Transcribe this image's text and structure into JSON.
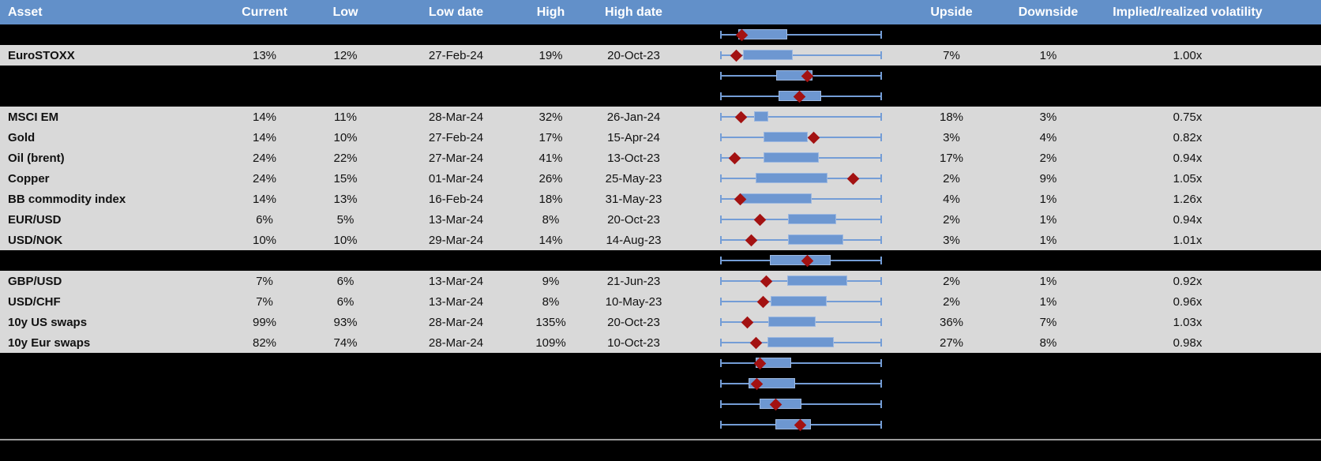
{
  "colors": {
    "header_bg": "#6290c9",
    "header_text": "#ffffff",
    "data_row_bg": "#d9d9d9",
    "spacer_row_bg": "#000000",
    "box_fill": "#6d97d1",
    "box_border": "#9db8e0",
    "whisker": "#749dd6",
    "marker": "#a31212",
    "bottom_rule": "#9b9b9b"
  },
  "header": {
    "asset": "Asset",
    "current": "Current",
    "low": "Low",
    "low_date": "Low date",
    "high": "High",
    "high_date": "High date",
    "upside": "Upside",
    "downside": "Downside",
    "iv_rv": "Implied/realized volatility"
  },
  "chart_data": {
    "type": "table",
    "note": "Each row has an embedded range (box-whisker) plot: whisker spans full low-high range; box and diamond marker positions are percentages of plot width.",
    "rows": [
      {
        "type": "spacer",
        "asset": "",
        "current": "",
        "low": "",
        "low_date": "",
        "high": "",
        "high_date": "",
        "upside": "",
        "downside": "",
        "iv_rv": "",
        "plot": {
          "box_start": 11.2,
          "box_end": 41.5,
          "marker": 13.2
        }
      },
      {
        "type": "data",
        "asset": "EuroSTOXX",
        "current": "13%",
        "low": "12%",
        "low_date": "27-Feb-24",
        "high": "19%",
        "high_date": "20-Oct-23",
        "upside": "7%",
        "downside": "1%",
        "iv_rv": "1.00x",
        "plot": {
          "box_start": 14.1,
          "box_end": 44.9,
          "marker": 9.8
        }
      },
      {
        "type": "spacer",
        "asset": "",
        "current": "",
        "low": "",
        "low_date": "",
        "high": "",
        "high_date": "",
        "upside": "",
        "downside": "",
        "iv_rv": "",
        "plot": {
          "box_start": 34.6,
          "box_end": 57.1,
          "marker": 53.7
        }
      },
      {
        "type": "spacer",
        "asset": "",
        "current": "",
        "low": "",
        "low_date": "",
        "high": "",
        "high_date": "",
        "upside": "",
        "downside": "",
        "iv_rv": "",
        "plot": {
          "box_start": 36.1,
          "box_end": 62.4,
          "marker": 48.8
        }
      },
      {
        "type": "data",
        "asset": "MSCI EM",
        "current": "14%",
        "low": "11%",
        "low_date": "28-Mar-24",
        "high": "32%",
        "high_date": "26-Jan-24",
        "upside": "18%",
        "downside": "3%",
        "iv_rv": "0.75x",
        "plot": {
          "box_start": 21.0,
          "box_end": 29.8,
          "marker": 12.7
        }
      },
      {
        "type": "data",
        "asset": "Gold",
        "current": "14%",
        "low": "10%",
        "low_date": "27-Feb-24",
        "high": "17%",
        "high_date": "15-Apr-24",
        "upside": "3%",
        "downside": "4%",
        "iv_rv": "0.82x",
        "plot": {
          "box_start": 26.8,
          "box_end": 54.1,
          "marker": 57.6
        }
      },
      {
        "type": "data",
        "asset": "Oil (brent)",
        "current": "24%",
        "low": "22%",
        "low_date": "27-Mar-24",
        "high": "41%",
        "high_date": "13-Oct-23",
        "upside": "17%",
        "downside": "2%",
        "iv_rv": "0.94x",
        "plot": {
          "box_start": 26.8,
          "box_end": 61.0,
          "marker": 8.8
        }
      },
      {
        "type": "data",
        "asset": "Copper",
        "current": "24%",
        "low": "15%",
        "low_date": "01-Mar-24",
        "high": "26%",
        "high_date": "25-May-23",
        "upside": "2%",
        "downside": "9%",
        "iv_rv": "1.05x",
        "plot": {
          "box_start": 22.0,
          "box_end": 66.3,
          "marker": 82.0
        }
      },
      {
        "type": "data",
        "asset": "BB commodity index",
        "current": "14%",
        "low": "13%",
        "low_date": "16-Feb-24",
        "high": "18%",
        "high_date": "31-May-23",
        "upside": "4%",
        "downside": "1%",
        "iv_rv": "1.26x",
        "plot": {
          "box_start": 12.7,
          "box_end": 56.6,
          "marker": 12.2
        }
      },
      {
        "type": "data",
        "asset": "EUR/USD",
        "current": "6%",
        "low": "5%",
        "low_date": "13-Mar-24",
        "high": "8%",
        "high_date": "20-Oct-23",
        "upside": "2%",
        "downside": "1%",
        "iv_rv": "0.94x",
        "plot": {
          "box_start": 42.0,
          "box_end": 71.7,
          "marker": 24.4
        }
      },
      {
        "type": "data",
        "asset": "USD/NOK",
        "current": "10%",
        "low": "10%",
        "low_date": "29-Mar-24",
        "high": "14%",
        "high_date": "14-Aug-23",
        "upside": "3%",
        "downside": "1%",
        "iv_rv": "1.01x",
        "plot": {
          "box_start": 42.0,
          "box_end": 76.1,
          "marker": 19.5
        }
      },
      {
        "type": "spacer",
        "asset": "",
        "current": "",
        "low": "",
        "low_date": "",
        "high": "",
        "high_date": "",
        "upside": "",
        "downside": "",
        "iv_rv": "",
        "plot": {
          "box_start": 30.7,
          "box_end": 68.3,
          "marker": 53.7
        }
      },
      {
        "type": "data",
        "asset": "GBP/USD",
        "current": "7%",
        "low": "6%",
        "low_date": "13-Mar-24",
        "high": "9%",
        "high_date": "21-Jun-23",
        "upside": "2%",
        "downside": "1%",
        "iv_rv": "0.92x",
        "plot": {
          "box_start": 41.5,
          "box_end": 78.5,
          "marker": 28.3
        }
      },
      {
        "type": "data",
        "asset": "USD/CHF",
        "current": "7%",
        "low": "6%",
        "low_date": "13-Mar-24",
        "high": "8%",
        "high_date": "10-May-23",
        "upside": "2%",
        "downside": "1%",
        "iv_rv": "0.96x",
        "plot": {
          "box_start": 31.2,
          "box_end": 65.9,
          "marker": 26.8
        }
      },
      {
        "type": "data",
        "asset": "10y US swaps",
        "current": "99%",
        "low": "93%",
        "low_date": "28-Mar-24",
        "high": "135%",
        "high_date": "20-Oct-23",
        "upside": "36%",
        "downside": "7%",
        "iv_rv": "1.03x",
        "plot": {
          "box_start": 29.8,
          "box_end": 59.0,
          "marker": 16.6
        }
      },
      {
        "type": "data",
        "asset": "10y Eur swaps",
        "current": "82%",
        "low": "74%",
        "low_date": "28-Mar-24",
        "high": "109%",
        "high_date": "10-Oct-23",
        "upside": "27%",
        "downside": "8%",
        "iv_rv": "0.98x",
        "plot": {
          "box_start": 29.3,
          "box_end": 70.2,
          "marker": 22.4
        }
      },
      {
        "type": "spacer",
        "asset": "",
        "current": "",
        "low": "",
        "low_date": "",
        "high": "",
        "high_date": "",
        "upside": "",
        "downside": "",
        "iv_rv": "",
        "plot": {
          "box_start": 22.0,
          "box_end": 43.9,
          "marker": 24.4
        }
      },
      {
        "type": "spacer",
        "asset": "",
        "current": "",
        "low": "",
        "low_date": "",
        "high": "",
        "high_date": "",
        "upside": "",
        "downside": "",
        "iv_rv": "",
        "plot": {
          "box_start": 17.6,
          "box_end": 46.3,
          "marker": 22.9
        }
      },
      {
        "type": "spacer",
        "asset": "",
        "current": "",
        "low": "",
        "low_date": "",
        "high": "",
        "high_date": "",
        "upside": "",
        "downside": "",
        "iv_rv": "",
        "plot": {
          "box_start": 24.4,
          "box_end": 50.2,
          "marker": 34.6
        }
      },
      {
        "type": "spacer",
        "asset": "",
        "current": "",
        "low": "",
        "low_date": "",
        "high": "",
        "high_date": "",
        "upside": "",
        "downside": "",
        "iv_rv": "",
        "plot": {
          "box_start": 34.1,
          "box_end": 56.1,
          "marker": 49.3
        }
      }
    ]
  }
}
